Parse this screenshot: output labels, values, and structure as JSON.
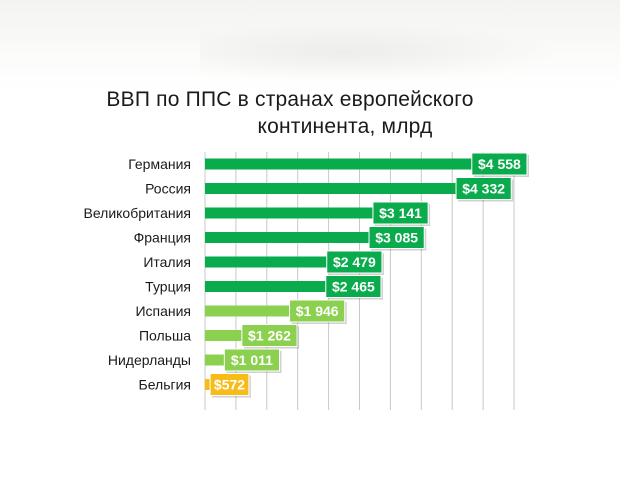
{
  "chart_data": {
    "type": "bar",
    "orientation": "horizontal",
    "title_line1": "ВВП по ППС в странах европейского",
    "title_line2": "континента, млрд",
    "categories": [
      "Германия",
      "Россия",
      "Великобритания",
      "Франция",
      "Италия",
      "Турция",
      "Испания",
      "Польша",
      "Нидерланды",
      "Бельгия"
    ],
    "values": [
      4558,
      4332,
      3141,
      3085,
      2479,
      2465,
      1946,
      1262,
      1011,
      572
    ],
    "value_labels": [
      "$4 558",
      "$4 332",
      "$3 141",
      "$3 085",
      "$2 479",
      "$2 465",
      "$1 946",
      "$1 262",
      "$1 011",
      "$572"
    ],
    "colors": [
      "#0aab4c",
      "#0aab4c",
      "#0aab4c",
      "#0aab4c",
      "#0aab4c",
      "#0aab4c",
      "#8bd04e",
      "#8bd04e",
      "#8bd04e",
      "#f7bc18"
    ],
    "xlim": [
      0,
      5000
    ],
    "grid": "vertical"
  }
}
